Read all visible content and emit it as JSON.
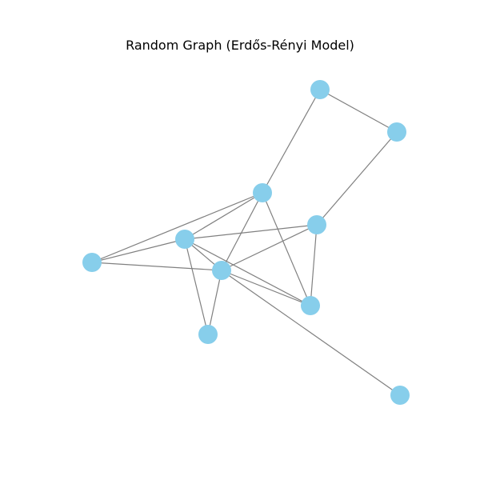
{
  "title": "Random Graph (Erdős-Rényi Model)",
  "colors": {
    "node": "#87CEEB",
    "edge": "#808080",
    "background": "#FFFFFF"
  },
  "nodes": [
    {
      "id": "n0",
      "label": ""
    },
    {
      "id": "n1",
      "label": ""
    },
    {
      "id": "n2",
      "label": ""
    },
    {
      "id": "n3",
      "label": ""
    },
    {
      "id": "n4",
      "label": ""
    },
    {
      "id": "n5",
      "label": ""
    },
    {
      "id": "n6",
      "label": ""
    },
    {
      "id": "n7",
      "label": ""
    },
    {
      "id": "n8",
      "label": ""
    },
    {
      "id": "n9",
      "label": ""
    }
  ],
  "edges": [
    [
      "n0",
      "n1"
    ],
    [
      "n0",
      "n2"
    ],
    [
      "n1",
      "n3"
    ],
    [
      "n2",
      "n4"
    ],
    [
      "n2",
      "n5"
    ],
    [
      "n2",
      "n6"
    ],
    [
      "n2",
      "n8"
    ],
    [
      "n3",
      "n4"
    ],
    [
      "n3",
      "n6"
    ],
    [
      "n3",
      "n8"
    ],
    [
      "n4",
      "n7"
    ],
    [
      "n4",
      "n5"
    ],
    [
      "n4",
      "n6"
    ],
    [
      "n4",
      "n8"
    ],
    [
      "n5",
      "n6"
    ],
    [
      "n6",
      "n7"
    ],
    [
      "n6",
      "n8"
    ],
    [
      "n6",
      "n9"
    ]
  ]
}
